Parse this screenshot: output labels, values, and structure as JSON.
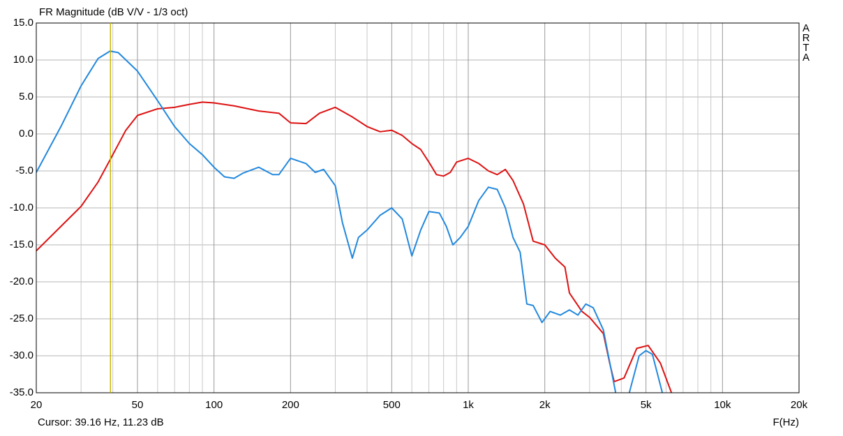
{
  "chart_data": {
    "type": "line",
    "title": "FR Magnitude (dB V/V - 1/3 oct)",
    "xlabel": "F(Hz)",
    "annotation": "Cursor: 39.16 Hz, 11.23 dB",
    "watermark": "ARTA",
    "cursor_x": 39.16,
    "cursor_color": "#c8b400",
    "xscale": "log",
    "grid": true,
    "xlim": [
      20,
      20000
    ],
    "ylim": [
      -35,
      15
    ],
    "xticks": [
      20,
      50,
      100,
      200,
      500,
      {
        "value": 1000,
        "label": "1k"
      },
      {
        "value": 2000,
        "label": "2k"
      },
      {
        "value": 5000,
        "label": "5k"
      },
      {
        "value": 10000,
        "label": "10k"
      },
      {
        "value": 20000,
        "label": "20k"
      }
    ],
    "xminor_ticks": [
      30,
      40,
      60,
      70,
      80,
      90,
      300,
      400,
      600,
      700,
      800,
      900,
      3000,
      4000,
      6000,
      7000,
      8000,
      9000
    ],
    "yticks": [
      {
        "value": 15,
        "label": "15.0"
      },
      {
        "value": 10,
        "label": "10.0"
      },
      {
        "value": 5,
        "label": "5.0"
      },
      {
        "value": 0,
        "label": "0.0"
      },
      {
        "value": -5,
        "label": "-5.0"
      },
      {
        "value": -10,
        "label": "-10.0"
      },
      {
        "value": -15,
        "label": "-15.0"
      },
      {
        "value": -20,
        "label": "-20.0"
      },
      {
        "value": -25,
        "label": "-25.0"
      },
      {
        "value": -30,
        "label": "-30.0"
      },
      {
        "value": -35,
        "label": "-35.0"
      }
    ],
    "series": [
      {
        "color": "#dd1111",
        "x": [
          20,
          25,
          30,
          35,
          40,
          45,
          50,
          60,
          70,
          80,
          90,
          100,
          120,
          150,
          180,
          200,
          230,
          260,
          300,
          350,
          400,
          450,
          500,
          550,
          600,
          650,
          700,
          750,
          800,
          850,
          900,
          1000,
          1100,
          1200,
          1300,
          1400,
          1500,
          1650,
          1800,
          2000,
          2200,
          2400,
          2500,
          2800,
          3000,
          3400,
          3600,
          3750,
          4100,
          4600,
          5100,
          5700,
          6300
        ],
        "values": [
          -15.8,
          -12.5,
          -9.8,
          -6.5,
          -2.8,
          0.5,
          2.5,
          3.4,
          3.6,
          4.0,
          4.3,
          4.2,
          3.8,
          3.1,
          2.8,
          1.5,
          1.4,
          2.8,
          3.6,
          2.3,
          1.0,
          0.3,
          0.5,
          -0.2,
          -1.3,
          -2.1,
          -3.8,
          -5.5,
          -5.7,
          -5.2,
          -3.8,
          -3.3,
          -4.0,
          -5.0,
          -5.5,
          -4.8,
          -6.3,
          -9.5,
          -14.5,
          -15.0,
          -16.8,
          -18.0,
          -21.5,
          -24.0,
          -24.8,
          -27.0,
          -31.0,
          -33.5,
          -33.0,
          -29.0,
          -28.6,
          -31.0,
          -35.0
        ]
      },
      {
        "color": "#2288dd",
        "x": [
          20,
          25,
          30,
          35,
          39,
          42,
          50,
          60,
          70,
          80,
          90,
          100,
          110,
          120,
          130,
          150,
          170,
          180,
          200,
          230,
          250,
          270,
          300,
          320,
          350,
          370,
          400,
          450,
          500,
          550,
          600,
          650,
          700,
          770,
          820,
          870,
          930,
          1000,
          1100,
          1200,
          1300,
          1400,
          1500,
          1600,
          1700,
          1800,
          1950,
          2100,
          2300,
          2500,
          2700,
          2900,
          3100,
          3400,
          3800,
          4000,
          4300,
          4700,
          5000,
          5300,
          5800
        ],
        "values": [
          -5.2,
          1.0,
          6.5,
          10.2,
          11.2,
          11.0,
          8.5,
          4.5,
          1.0,
          -1.3,
          -2.8,
          -4.5,
          -5.8,
          -6.0,
          -5.3,
          -4.5,
          -5.5,
          -5.5,
          -3.3,
          -4.0,
          -5.2,
          -4.8,
          -7.0,
          -12.0,
          -16.8,
          -14.0,
          -13.0,
          -11.0,
          -10.0,
          -11.5,
          -16.5,
          -13.0,
          -10.5,
          -10.7,
          -12.5,
          -15.0,
          -14.0,
          -12.5,
          -9.0,
          -7.2,
          -7.5,
          -10.0,
          -14.0,
          -16.0,
          -23.0,
          -23.2,
          -25.5,
          -24.0,
          -24.5,
          -23.8,
          -24.5,
          -23.0,
          -23.5,
          -26.5,
          -35.0,
          null,
          -35.0,
          -30.0,
          -29.3,
          -29.8,
          -35.0
        ]
      }
    ]
  }
}
